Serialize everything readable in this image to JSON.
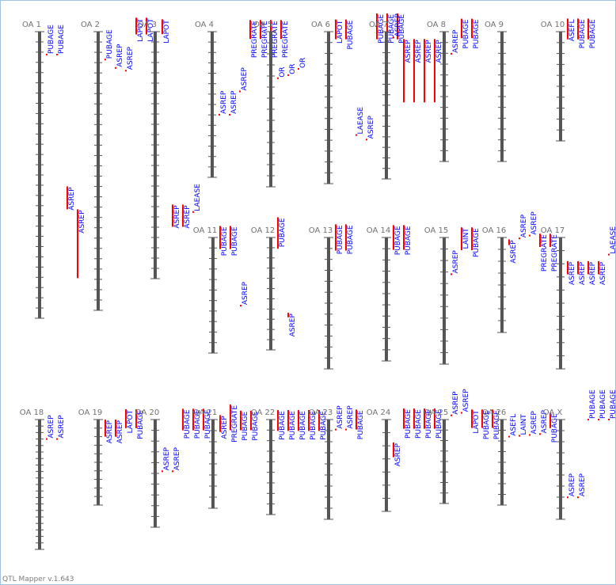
{
  "footer": "QTL Mapper v.1.643",
  "colors": {
    "chrom": "#555555",
    "qtl": "#ff0000",
    "label": "#0000ff",
    "title": "#707070"
  },
  "chromosomes": [
    {
      "name": "OA 1",
      "ticks": 28,
      "qtls": [
        {
          "trait": "PUBAGE",
          "type": "point",
          "start": 0.08
        },
        {
          "trait": "PUBAGE",
          "type": "point",
          "start": 0.08
        },
        {
          "trait": "ASREP",
          "type": "bar",
          "start": 0.54,
          "end": 0.62
        },
        {
          "trait": "ASREP",
          "type": "bar",
          "start": 0.62,
          "end": 0.86
        }
      ]
    },
    {
      "name": "OA 2",
      "ticks": 27,
      "qtls": [
        {
          "trait": "PUBAGE",
          "type": "point",
          "start": 0.1
        },
        {
          "trait": "ASREP",
          "type": "point",
          "start": 0.13
        },
        {
          "trait": "ASREP",
          "type": "point",
          "start": 0.14
        },
        {
          "trait": "LAPOT",
          "type": "bar",
          "start": -0.05,
          "end": 0.01
        },
        {
          "trait": "LAPOT",
          "type": "bar",
          "start": -0.05,
          "end": 0.01
        }
      ]
    },
    {
      "name": "OA 3",
      "ticks": 24,
      "qtls": [
        {
          "trait": "LAPOT",
          "type": "bar",
          "start": -0.05,
          "end": 0.01
        },
        {
          "trait": "ASREP",
          "type": "bar",
          "start": 0.7,
          "end": 0.79
        },
        {
          "trait": "ASREP",
          "type": "bar",
          "start": 0.7,
          "end": 0.79
        },
        {
          "trait": "LAEASE",
          "type": "point",
          "start": 0.73
        }
      ]
    },
    {
      "name": "OA 4",
      "ticks": 14,
      "qtls": [
        {
          "trait": "ASREP",
          "type": "point",
          "start": 0.57
        },
        {
          "trait": "ASREP",
          "type": "point",
          "start": 0.57
        },
        {
          "trait": "ASREP",
          "type": "point",
          "start": 0.41
        },
        {
          "trait": "PREGRATE",
          "type": "bar",
          "start": -0.08,
          "end": 0.05
        },
        {
          "trait": "PREGRATE",
          "type": "bar",
          "start": -0.08,
          "end": 0.05
        },
        {
          "trait": "PREGRATE",
          "type": "bar",
          "start": -0.08,
          "end": 0.05
        },
        {
          "trait": "PREGRATE",
          "type": "bar",
          "start": -0.08,
          "end": 0.05
        }
      ]
    },
    {
      "name": "OA 5",
      "ticks": 14,
      "qtls": [
        {
          "trait": "OR",
          "type": "point",
          "start": 0.3
        },
        {
          "trait": "OR",
          "type": "point",
          "start": 0.28
        },
        {
          "trait": "OR",
          "type": "point",
          "start": 0.24
        }
      ]
    },
    {
      "name": "OA 6",
      "ticks": 14,
      "qtls": [
        {
          "trait": "LAPOT",
          "type": "bar",
          "start": -0.08,
          "end": 0.05
        },
        {
          "trait": "PUBAGE",
          "type": "bar",
          "start": -0.08,
          "end": 0.05
        },
        {
          "trait": "LAEASE",
          "type": "point",
          "start": 0.68
        },
        {
          "trait": "ASREP",
          "type": "point",
          "start": 0.71
        },
        {
          "trait": "PUBAGE",
          "type": "bar",
          "start": -0.12,
          "end": 0.05
        },
        {
          "trait": "PUBAGE",
          "type": "bar",
          "start": -0.12,
          "end": 0.05
        },
        {
          "trait": "PUBAGE",
          "type": "bar",
          "start": -0.12,
          "end": 0.05
        }
      ]
    },
    {
      "name": "OA 7",
      "ticks": 14,
      "qtls": [
        {
          "trait": "ASREP",
          "type": "point",
          "start": 0.04
        },
        {
          "trait": "ASREP",
          "type": "bar",
          "start": 0.05,
          "end": 0.48
        },
        {
          "trait": "ASREP",
          "type": "bar",
          "start": 0.05,
          "end": 0.48
        },
        {
          "trait": "ASREP",
          "type": "bar",
          "start": 0.05,
          "end": 0.48
        },
        {
          "trait": "ASREP",
          "type": "bar",
          "start": 0.05,
          "end": 0.48
        }
      ]
    },
    {
      "name": "OA 8",
      "ticks": 12,
      "qtls": [
        {
          "trait": "ASREP",
          "type": "point",
          "start": 0.17
        },
        {
          "trait": "PUBAGE",
          "type": "bar",
          "start": -0.1,
          "end": 0.05
        },
        {
          "trait": "PUBAGE",
          "type": "bar",
          "start": -0.1,
          "end": 0.05
        }
      ]
    },
    {
      "name": "OA 9",
      "ticks": 12,
      "qtls": []
    },
    {
      "name": "OA 10",
      "ticks": 10,
      "qtls": [
        {
          "trait": "ASEFL",
          "type": "bar",
          "start": -0.12,
          "end": 0.07
        },
        {
          "trait": "PUBAGE",
          "type": "bar",
          "start": -0.12,
          "end": 0.07
        },
        {
          "trait": "PUBAGE",
          "type": "bar",
          "start": -0.12,
          "end": 0.07
        }
      ]
    },
    {
      "name": "OA 11",
      "ticks": 11,
      "qtls": [
        {
          "trait": "PUBAGE",
          "type": "bar",
          "start": -0.1,
          "end": 0.1
        },
        {
          "trait": "PUBAGE",
          "type": "bar",
          "start": -0.1,
          "end": 0.1
        },
        {
          "trait": "ASREP",
          "type": "point",
          "start": 0.59
        }
      ]
    },
    {
      "name": "OA 12",
      "ticks": 11,
      "qtls": [
        {
          "trait": "PUBAGE",
          "type": "bar",
          "start": -0.18,
          "end": 0.1
        },
        {
          "trait": "ASREP",
          "type": "bar",
          "start": 0.67,
          "end": 0.71
        }
      ]
    },
    {
      "name": "OA 13",
      "ticks": 12,
      "qtls": [
        {
          "trait": "PUBAGE",
          "type": "bar",
          "start": -0.1,
          "end": 0.1
        },
        {
          "trait": "PUBAGE",
          "type": "bar",
          "start": -0.1,
          "end": 0.1
        }
      ]
    },
    {
      "name": "OA 14",
      "ticks": 11,
      "qtls": [
        {
          "trait": "PUBAGE",
          "type": "bar",
          "start": -0.1,
          "end": 0.1
        },
        {
          "trait": "PUBAGE",
          "type": "bar",
          "start": -0.1,
          "end": 0.1
        }
      ]
    },
    {
      "name": "OA 15",
      "ticks": 11,
      "qtls": [
        {
          "trait": "ASREP",
          "type": "point",
          "start": 0.29
        },
        {
          "trait": "LAINT",
          "type": "bar",
          "start": -0.08,
          "end": 0.1
        },
        {
          "trait": "PUBAGE",
          "type": "bar",
          "start": -0.08,
          "end": 0.1
        }
      ]
    },
    {
      "name": "OA 16",
      "ticks": 8,
      "qtls": [
        {
          "trait": "ASREP",
          "type": "bar",
          "start": 0.02,
          "end": 0.08
        },
        {
          "trait": "ASREP",
          "type": "point",
          "start": 0.01
        },
        {
          "trait": "ASREP",
          "type": "point",
          "start": -0.02
        },
        {
          "trait": "PREGRATE",
          "type": "bar",
          "start": -0.04,
          "end": 0.1
        },
        {
          "trait": "PREGRATE",
          "type": "bar",
          "start": -0.04,
          "end": 0.1
        }
      ]
    },
    {
      "name": "OA 17",
      "ticks": 10,
      "qtls": [
        {
          "trait": "ASREP",
          "type": "bar",
          "start": 0.18,
          "end": 0.28
        },
        {
          "trait": "ASREP",
          "type": "bar",
          "start": 0.18,
          "end": 0.28
        },
        {
          "trait": "ASREP",
          "type": "bar",
          "start": 0.18,
          "end": 0.28
        },
        {
          "trait": "ASREP",
          "type": "bar",
          "start": 0.18,
          "end": 0.28
        },
        {
          "trait": "LAEASE",
          "type": "point",
          "start": 0.13
        }
      ]
    },
    {
      "name": "OA 18",
      "ticks": 20,
      "qtls": [
        {
          "trait": "ASREP",
          "type": "point",
          "start": 0.15
        },
        {
          "trait": "ASREP",
          "type": "point",
          "start": 0.15
        }
      ]
    },
    {
      "name": "OA 19",
      "ticks": 10,
      "qtls": [
        {
          "trait": "ASREP",
          "type": "bar",
          "start": 0.0,
          "end": 0.2
        },
        {
          "trait": "ASREP",
          "type": "bar",
          "start": 0.0,
          "end": 0.2
        },
        {
          "trait": "LAPOT",
          "type": "bar",
          "start": -0.12,
          "end": 0.1
        },
        {
          "trait": "PUBAGE",
          "type": "bar",
          "start": -0.12,
          "end": 0.1
        }
      ]
    },
    {
      "name": "OA 20",
      "ticks": 10,
      "qtls": [
        {
          "trait": "ASREP",
          "type": "point",
          "start": 0.48
        },
        {
          "trait": "ASREP",
          "type": "point",
          "start": 0.48
        },
        {
          "trait": "PUBAGE",
          "type": "bar",
          "start": -0.1,
          "end": 0.1
        },
        {
          "trait": "PUBAGE",
          "type": "bar",
          "start": -0.1,
          "end": 0.1
        },
        {
          "trait": "PUBAGE",
          "type": "bar",
          "start": -0.1,
          "end": 0.1
        }
      ]
    },
    {
      "name": "OA 21",
      "ticks": 8,
      "qtls": [
        {
          "trait": "ASREP",
          "type": "bar",
          "start": -0.05,
          "end": 0.14
        },
        {
          "trait": "PREGRATE",
          "type": "bar",
          "start": -0.17,
          "end": 0.12
        },
        {
          "trait": "PUBAGE",
          "type": "bar",
          "start": -0.1,
          "end": 0.12
        },
        {
          "trait": "PUBAGE",
          "type": "bar",
          "start": -0.1,
          "end": 0.12
        }
      ]
    },
    {
      "name": "OA 22",
      "ticks": 9,
      "qtls": [
        {
          "trait": "PUBAGE",
          "type": "bar",
          "start": -0.1,
          "end": 0.12
        },
        {
          "trait": "PUBAGE",
          "type": "bar",
          "start": -0.1,
          "end": 0.12
        },
        {
          "trait": "PUBAGE",
          "type": "bar",
          "start": -0.1,
          "end": 0.12
        },
        {
          "trait": "PUBAGE",
          "type": "bar",
          "start": -0.1,
          "end": 0.12
        },
        {
          "trait": "PUBAGE",
          "type": "bar",
          "start": -0.1,
          "end": 0.12
        }
      ]
    },
    {
      "name": "OA 23",
      "ticks": 9,
      "qtls": [
        {
          "trait": "ASREP",
          "type": "point",
          "start": 0.1
        },
        {
          "trait": "ASREP",
          "type": "point",
          "start": 0.1
        },
        {
          "trait": "PUBAGE",
          "type": "bar",
          "start": -0.1,
          "end": 0.1
        }
      ]
    },
    {
      "name": "OA 24",
      "ticks": 7,
      "qtls": [
        {
          "trait": "ASREP",
          "type": "bar",
          "start": 0.25,
          "end": 0.41
        },
        {
          "trait": "PUBAGE",
          "type": "bar",
          "start": -0.12,
          "end": 0.1
        },
        {
          "trait": "PUBAGE",
          "type": "bar",
          "start": -0.12,
          "end": 0.1
        },
        {
          "trait": "PUBAGE",
          "type": "bar",
          "start": -0.12,
          "end": 0.1
        },
        {
          "trait": "PUBAGE",
          "type": "bar",
          "start": -0.12,
          "end": 0.1
        }
      ]
    },
    {
      "name": "OA 25",
      "ticks": 8,
      "qtls": [
        {
          "trait": "ASREP",
          "type": "point",
          "start": -0.05
        },
        {
          "trait": "ASREP",
          "type": "point",
          "start": -0.08
        },
        {
          "trait": "LAPOT",
          "type": "bar",
          "start": -0.12,
          "end": 0.1
        },
        {
          "trait": "PUBAGE",
          "type": "bar",
          "start": -0.12,
          "end": 0.1
        },
        {
          "trait": "PUBAGE",
          "type": "bar",
          "start": -0.12,
          "end": 0.1
        }
      ]
    },
    {
      "name": "OA 26",
      "ticks": 8,
      "qtls": [
        {
          "trait": "ASEFL",
          "type": "point",
          "start": 0.2
        },
        {
          "trait": "LAINT",
          "type": "point",
          "start": 0.19
        },
        {
          "trait": "ASREP",
          "type": "point",
          "start": 0.18
        },
        {
          "trait": "ASREP",
          "type": "point",
          "start": 0.17
        },
        {
          "trait": "PUBAGE",
          "type": "bar",
          "start": -0.08,
          "end": 0.1
        }
      ]
    },
    {
      "name": "OA X",
      "ticks": 9,
      "qtls": [
        {
          "trait": "ASREP",
          "type": "point",
          "start": 0.78
        },
        {
          "trait": "ASREP",
          "type": "point",
          "start": 0.78
        },
        {
          "trait": "PUBAGE",
          "type": "point",
          "start": 0.0
        },
        {
          "trait": "PUBAGE",
          "type": "point",
          "start": 0.0
        },
        {
          "trait": "PUBAGE",
          "type": "point",
          "start": 0.0
        }
      ]
    }
  ]
}
